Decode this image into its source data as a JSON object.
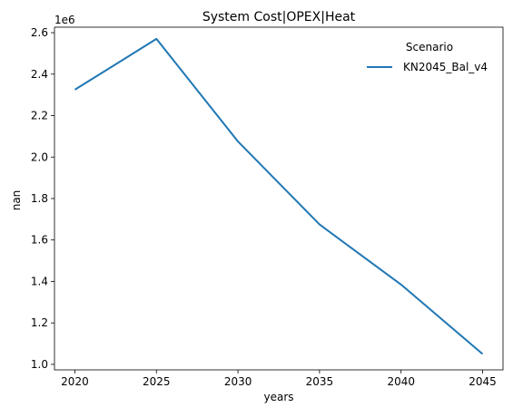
{
  "chart_data": {
    "type": "line",
    "title": "System Cost|OPEX|Heat",
    "xlabel": "years",
    "ylabel": "nan",
    "y_offset_label": "1e6",
    "legend_title": "Scenario",
    "legend_position": "top-right",
    "grid": false,
    "xlim": [
      2018.75,
      2046.25
    ],
    "ylim": [
      0.9735,
      2.6265
    ],
    "x_ticks": [
      2020,
      2025,
      2030,
      2035,
      2040,
      2045
    ],
    "y_ticks": [
      1.0,
      1.2,
      1.4,
      1.6,
      1.8,
      2.0,
      2.2,
      2.4,
      2.6
    ],
    "y_tick_labels": [
      "1.0",
      "1.2",
      "1.4",
      "1.6",
      "1.8",
      "2.0",
      "2.2",
      "2.4",
      "2.6"
    ],
    "x": [
      2020,
      2025,
      2030,
      2035,
      2040,
      2045
    ],
    "series": [
      {
        "name": "KN2045_Bal_v4",
        "color": "#1f77b4",
        "values": [
          2.325,
          2.57,
          2.075,
          1.675,
          1.385,
          1.05
        ]
      }
    ]
  }
}
